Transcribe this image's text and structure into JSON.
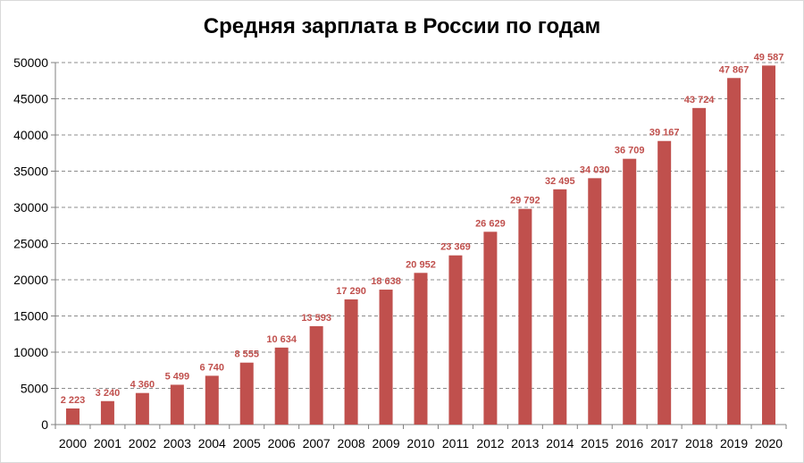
{
  "chart_data": {
    "type": "bar",
    "title": "Средняя зарплата в России по годам",
    "xlabel": "",
    "ylabel": "",
    "ylim": [
      0,
      50000
    ],
    "yticks": [
      0,
      5000,
      10000,
      15000,
      20000,
      25000,
      30000,
      35000,
      40000,
      45000,
      50000
    ],
    "ytick_labels": [
      "0",
      "5000",
      "10000",
      "15000",
      "20000",
      "25000",
      "30000",
      "35000",
      "40000",
      "45000",
      "50000"
    ],
    "categories": [
      "2000",
      "2001",
      "2002",
      "2003",
      "2004",
      "2005",
      "2006",
      "2007",
      "2008",
      "2009",
      "2010",
      "2011",
      "2012",
      "2013",
      "2014",
      "2015",
      "2016",
      "2017",
      "2018",
      "2019",
      "2020"
    ],
    "values": [
      2223,
      3240,
      4360,
      5499,
      6740,
      8555,
      10634,
      13593,
      17290,
      18638,
      20952,
      23369,
      26629,
      29792,
      32495,
      34030,
      36709,
      39167,
      43724,
      47867,
      49587
    ],
    "data_labels": [
      "2 223",
      "3 240",
      "4 360",
      "5 499",
      "6 740",
      "8 555",
      "10 634",
      "13 593",
      "17 290",
      "18 638",
      "20 952",
      "23 369",
      "26 629",
      "29 792",
      "32 495",
      "34 030",
      "36 709",
      "39 167",
      "43 724",
      "47 867",
      "49 587"
    ],
    "bar_color": "#c0504d",
    "grid": true,
    "legend": "none"
  }
}
